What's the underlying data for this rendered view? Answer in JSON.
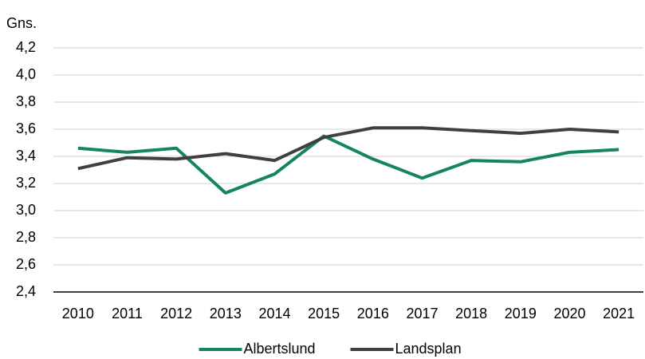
{
  "chart_data": {
    "type": "line",
    "y_axis_label": "Gns.",
    "categories": [
      "2010",
      "2011",
      "2012",
      "2013",
      "2014",
      "2015",
      "2016",
      "2017",
      "2018",
      "2019",
      "2020",
      "2021"
    ],
    "series": [
      {
        "name": "Albertslund",
        "color": "#14865a",
        "values": [
          3.46,
          3.43,
          3.46,
          3.13,
          3.27,
          3.55,
          3.38,
          3.24,
          3.37,
          3.36,
          3.43,
          3.45
        ]
      },
      {
        "name": "Landsplan",
        "color": "#404040",
        "values": [
          3.31,
          3.39,
          3.38,
          3.42,
          3.37,
          3.54,
          3.61,
          3.61,
          3.59,
          3.57,
          3.6,
          3.58
        ]
      }
    ],
    "ylim": [
      2.4,
      4.2
    ],
    "yticks": [
      {
        "value": 2.4,
        "label": "2,4"
      },
      {
        "value": 2.6,
        "label": "2,6"
      },
      {
        "value": 2.8,
        "label": "2,8"
      },
      {
        "value": 3.0,
        "label": "3,0"
      },
      {
        "value": 3.2,
        "label": "3,2"
      },
      {
        "value": 3.4,
        "label": "3,4"
      },
      {
        "value": 3.6,
        "label": "3,6"
      },
      {
        "value": 3.8,
        "label": "3,8"
      },
      {
        "value": 4.0,
        "label": "4,0"
      },
      {
        "value": 4.2,
        "label": "4,2"
      }
    ],
    "grid": true,
    "legend": "bottom"
  }
}
